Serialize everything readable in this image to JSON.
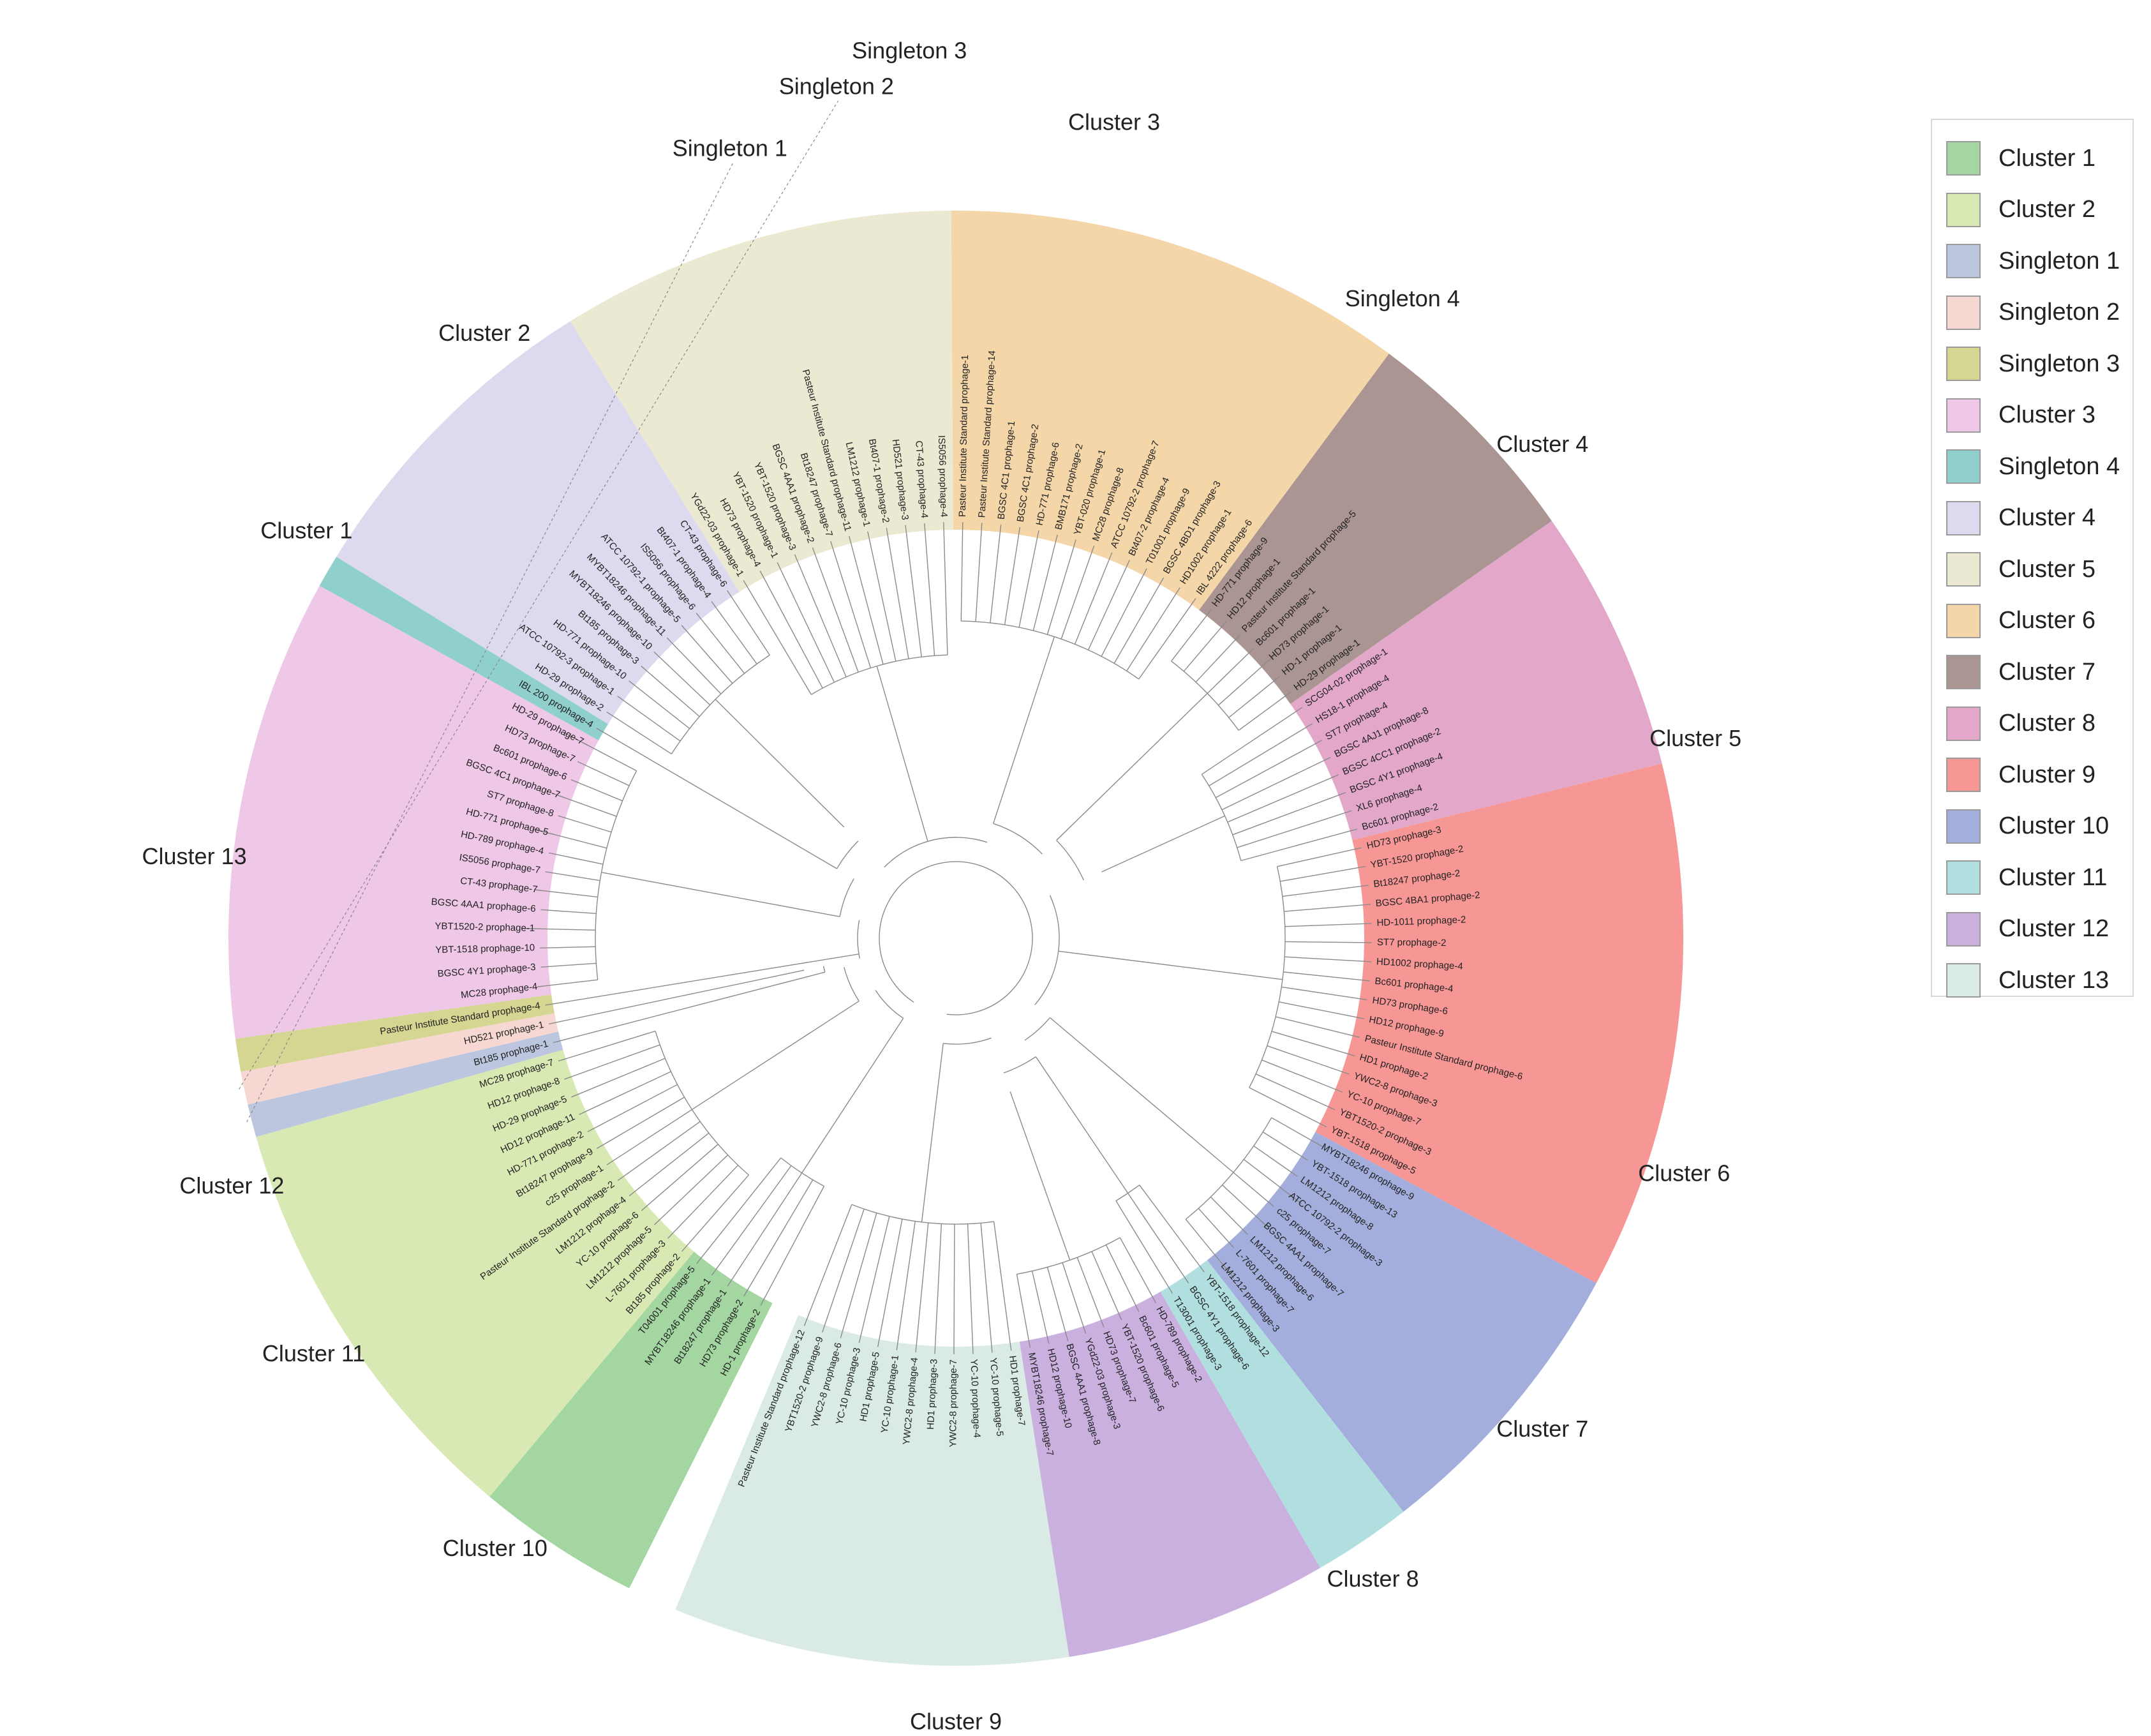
{
  "figure": "Circular phylogenetic tree of Bacillus thuringiensis prophages grouped by cluster",
  "clusters": [
    {
      "name": "Cluster 1",
      "color": "#a3d6a1",
      "leaves": [
        "HD-1 prophage-2",
        "HD73 prophage-2",
        "Bt18247 prophage-1",
        "MYBT18246 prophage-1",
        "T04001 prophage-5"
      ]
    },
    {
      "name": "Cluster 2",
      "color": "#d8e9b3",
      "leaves": [
        "Bt185 prophage-2",
        "L-7601 prophage-3",
        "LM1212 prophage-5",
        "YC-10 prophage-6",
        "LM1212 prophage-4",
        "Pasteur Institute Standard prophage-2",
        "c25 prophage-1",
        "Bt18247 prophage-9",
        "HD-771 prophage-2",
        "HD12 prophage-11",
        "HD-29 prophage-5",
        "HD12 prophage-8",
        "MC28 prophage-7"
      ]
    },
    {
      "name": "Singleton 1",
      "color": "#bcc7df",
      "leaves": [
        "Bt185 prophage-1"
      ]
    },
    {
      "name": "Singleton 2",
      "color": "#f6d7d2",
      "leaves": [
        "HD521 prophage-1"
      ]
    },
    {
      "name": "Singleton 3",
      "color": "#d6d693",
      "leaves": [
        "Pasteur Institute Standard prophage-4"
      ]
    },
    {
      "name": "Cluster 3",
      "color": "#efc7e7",
      "leaves": [
        "MC28 prophage-4",
        "BGSC 4Y1 prophage-3",
        "YBT-1518 prophage-10",
        "YBT1520-2 prophage-1",
        "BGSC 4AA1 prophage-6",
        "CT-43 prophage-7",
        "IS5056 prophage-7",
        "HD-789 prophage-4",
        "HD-771 prophage-5",
        "ST7 prophage-8",
        "BGSC 4C1 prophage-7",
        "Bc601 prophage-6",
        "HD73 prophage-7",
        "HD-29 prophage-7"
      ]
    },
    {
      "name": "Singleton 4",
      "color": "#8fd0cc",
      "leaves": [
        "IBL 200 prophage-4"
      ]
    },
    {
      "name": "Cluster 4",
      "color": "#ddd9ee",
      "leaves": [
        "HD-29 prophage-2",
        "ATCC 10792-3 prophage-1",
        "HD-771 prophage-10",
        "Bt185 prophage-3",
        "MYBT18246 prophage-10",
        "MYBT18246 prophage-11",
        "ATCC 10792-1 prophage-5",
        "IS5056 prophage-6",
        "Bt407-1 prophage-4",
        "CT-43 prophage-6"
      ]
    },
    {
      "name": "Cluster 5",
      "color": "#ebe9d2",
      "leaves": [
        "YGd22-03 prophage-1",
        "HD73 prophage-4",
        "YBT-1520 prophage-1",
        "YBT-1520 prophage-3",
        "BGSC 4AA1 prophage-2",
        "Bt18247 prophage-7",
        "Pasteur Institute Standard prophage-11",
        "LM1212 prophage-1",
        "Bt407-1 prophage-2",
        "HD521 prophage-3",
        "CT-43 prophage-4",
        "IS5056 prophage-4"
      ]
    },
    {
      "name": "Cluster 6",
      "color": "#f4d6a9",
      "leaves": [
        "Pasteur Institute Standard prophage-1",
        "Pasteur Institute Standard prophage-14",
        "BGSC 4C1 prophage-1",
        "BGSC 4C1 prophage-2",
        "HD-771 prophage-6",
        "BMB171 prophage-2",
        "YBT-020 prophage-1",
        "MC28 prophage-8",
        "ATCC 10792-2 prophage-7",
        "Bt407-2 prophage-4",
        "T01001 prophage-9",
        "BGSC 4BD1 prophage-3",
        "HD1002 prophage-1",
        "IBL 4222 prophage-6"
      ]
    },
    {
      "name": "Cluster 7",
      "color": "#aa9593",
      "leaves": [
        "HD-771 prophage-9",
        "HD12 prophage-1",
        "Pasteur Institute Standard prophage-5",
        "Bc601 prophage-1",
        "HD73 prophage-1",
        "HD-1 prophage-1",
        "HD-29 prophage-1"
      ]
    },
    {
      "name": "Cluster 8",
      "color": "#e2a7c9",
      "leaves": [
        "SCG04-02 prophage-1",
        "HS18-1 prophage-4",
        "ST7 prophage-4",
        "BGSC 4AJ1 prophage-8",
        "BGSC 4CC1 prophage-2",
        "BGSC 4Y1 prophage-4",
        "XL6 prophage-4",
        "Bc601 prophage-2"
      ]
    },
    {
      "name": "Cluster 9",
      "color": "#f79795",
      "leaves": [
        "HD73 prophage-3",
        "YBT-1520 prophage-2",
        "Bt18247 prophage-2",
        "BGSC 4BA1 prophage-2",
        "HD-1011 prophage-2",
        "ST7 prophage-2",
        "HD1002 prophage-4",
        "Bc601 prophage-4",
        "HD73 prophage-6",
        "HD12 prophage-9",
        "Pasteur Institute Standard prophage-6",
        "HD1 prophage-2",
        "YWC2-8 prophage-3",
        "YC-10 prophage-7",
        "YBT1520-2 prophage-3",
        "YBT-1518 prophage-5"
      ]
    },
    {
      "name": "Cluster 10",
      "color": "#a3aedd",
      "leaves": [
        "MYBT18246 prophage-9",
        "YBT-1518 prophage-13",
        "LM1212 prophage-8",
        "ATCC 10792-2 prophage-3",
        "c25 prophage-7",
        "BGSC 4AA1 prophage-7",
        "LM1212 prophage-6",
        "L-7601 prophage-7",
        "LM1212 prophage-3"
      ]
    },
    {
      "name": "Cluster 11",
      "color": "#b1dfe0",
      "leaves": [
        "YBT-1518 prophage-12",
        "BGSC 4Y1 prophage-6",
        "T13001 prophage-3"
      ]
    },
    {
      "name": "Cluster 12",
      "color": "#c9b0df",
      "leaves": [
        "HD-789 prophage-2",
        "Bc601 prophage-5",
        "YBT-1520 prophage-6",
        "HD73 prophage-7",
        "YGd22-03 prophage-3",
        "BGSC 4AA1 prophage-8",
        "HD12 prophage-10",
        "MYBT18246 prophage-7"
      ]
    },
    {
      "name": "Cluster 13",
      "color": "#d9ebe4",
      "leaves": [
        "HD1 prophage-7",
        "YC-10 prophage-5",
        "YC-10 prophage-4",
        "YWC2-8 prophage-7",
        "HD1 prophage-3",
        "YWC2-8 prophage-4",
        "YC-10 prophage-1",
        "HD1 prophage-5",
        "YC-10 prophage-3",
        "YWC2-8 prophage-6",
        "YBT1520-2 prophage-9",
        "Pasteur Institute Standard prophage-12"
      ]
    }
  ],
  "legend": [
    {
      "label": "Cluster 1",
      "color": "#a3d6a1"
    },
    {
      "label": "Cluster 2",
      "color": "#d8e9b3"
    },
    {
      "label": "Singleton 1",
      "color": "#bcc7df"
    },
    {
      "label": "Singleton 2",
      "color": "#f6d7d2"
    },
    {
      "label": "Singleton 3",
      "color": "#d6d693"
    },
    {
      "label": "Cluster 3",
      "color": "#efc7e7"
    },
    {
      "label": "Singleton 4",
      "color": "#8fd0cc"
    },
    {
      "label": "Cluster 4",
      "color": "#ddd9ee"
    },
    {
      "label": "Cluster 5",
      "color": "#ebe9d2"
    },
    {
      "label": "Cluster 6",
      "color": "#f4d6a9"
    },
    {
      "label": "Cluster 7",
      "color": "#aa9593"
    },
    {
      "label": "Cluster 8",
      "color": "#e2a7c9"
    },
    {
      "label": "Cluster 9",
      "color": "#f79795"
    },
    {
      "label": "Cluster 10",
      "color": "#a3aedd"
    },
    {
      "label": "Cluster 11",
      "color": "#b1dfe0"
    },
    {
      "label": "Cluster 12",
      "color": "#c9b0df"
    },
    {
      "label": "Cluster 13",
      "color": "#d9ebe4"
    }
  ]
}
